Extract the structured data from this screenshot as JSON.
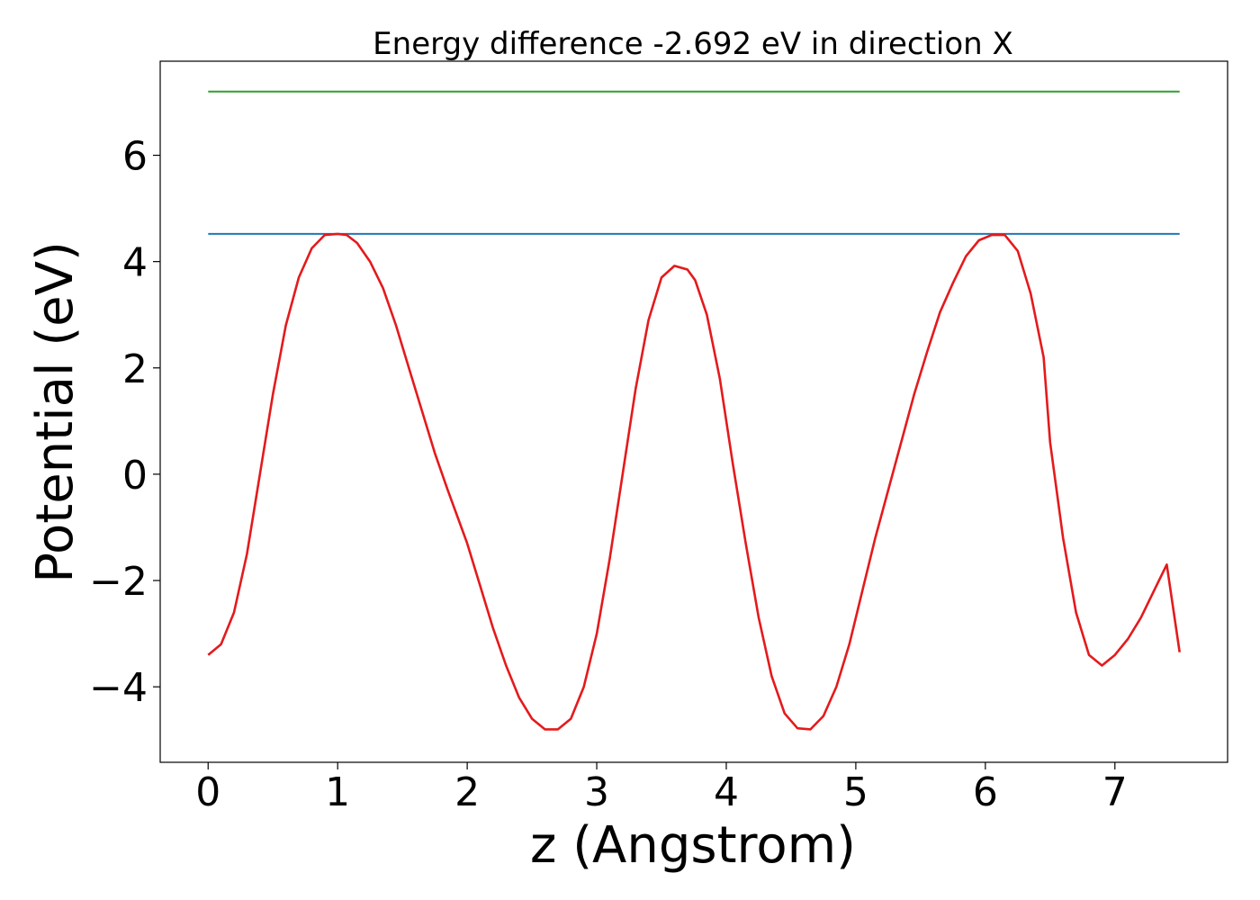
{
  "chart_data": {
    "type": "line",
    "title": "Energy difference -2.692 eV in direction X",
    "xlabel": "z (Angstrom)",
    "ylabel": "Potential (eV)",
    "xlim": [
      -0.37,
      7.87
    ],
    "ylim": [
      -5.42,
      7.77
    ],
    "xticks": [
      0,
      1,
      2,
      3,
      4,
      5,
      6,
      7
    ],
    "yticks": [
      -4,
      -2,
      0,
      2,
      4,
      6
    ],
    "xtick_labels": [
      "0",
      "1",
      "2",
      "3",
      "4",
      "5",
      "6",
      "7"
    ],
    "ytick_labels": [
      "−4",
      "−2",
      "0",
      "2",
      "4",
      "6"
    ],
    "grid": false,
    "series": [
      {
        "color": "#2ca02c",
        "x": [
          0,
          7.5
        ],
        "y": [
          7.2,
          7.2
        ]
      },
      {
        "color": "#1f77b4",
        "x": [
          0,
          7.5
        ],
        "y": [
          4.52,
          4.52
        ]
      },
      {
        "color": "#e41a1c",
        "x": [
          0.0,
          0.1,
          0.2,
          0.3,
          0.4,
          0.5,
          0.6,
          0.7,
          0.8,
          0.9,
          1.0,
          1.07,
          1.15,
          1.25,
          1.35,
          1.45,
          1.55,
          1.65,
          1.75,
          1.85,
          2.0,
          2.1,
          2.2,
          2.3,
          2.4,
          2.5,
          2.6,
          2.7,
          2.8,
          2.9,
          3.0,
          3.1,
          3.2,
          3.3,
          3.4,
          3.5,
          3.6,
          3.7,
          3.76,
          3.85,
          3.95,
          4.05,
          4.15,
          4.25,
          4.35,
          4.45,
          4.55,
          4.65,
          4.75,
          4.85,
          4.95,
          5.05,
          5.15,
          5.25,
          5.35,
          5.45,
          5.55,
          5.65,
          5.75,
          5.85,
          5.95,
          6.05,
          6.15,
          6.25,
          6.35,
          6.45,
          6.5,
          6.6,
          6.7,
          6.8,
          6.9,
          7.0,
          7.1,
          7.2,
          7.3,
          7.4,
          7.5
        ],
        "y": [
          -3.4,
          -3.2,
          -2.6,
          -1.5,
          0.0,
          1.5,
          2.8,
          3.7,
          4.25,
          4.5,
          4.52,
          4.5,
          4.35,
          4.0,
          3.5,
          2.8,
          2.0,
          1.2,
          0.4,
          -0.3,
          -1.3,
          -2.1,
          -2.9,
          -3.6,
          -4.2,
          -4.6,
          -4.8,
          -4.8,
          -4.6,
          -4.0,
          -3.0,
          -1.6,
          0.0,
          1.6,
          2.9,
          3.7,
          3.92,
          3.85,
          3.65,
          3.0,
          1.8,
          0.2,
          -1.3,
          -2.7,
          -3.8,
          -4.5,
          -4.78,
          -4.8,
          -4.55,
          -4.0,
          -3.2,
          -2.2,
          -1.2,
          -0.3,
          0.6,
          1.5,
          2.3,
          3.05,
          3.6,
          4.1,
          4.4,
          4.5,
          4.5,
          4.2,
          3.4,
          2.2,
          0.6,
          -1.2,
          -2.6,
          -3.4,
          -3.6,
          -3.4,
          -3.1,
          -2.7,
          -2.2,
          -1.7,
          -3.35
        ]
      }
    ]
  }
}
